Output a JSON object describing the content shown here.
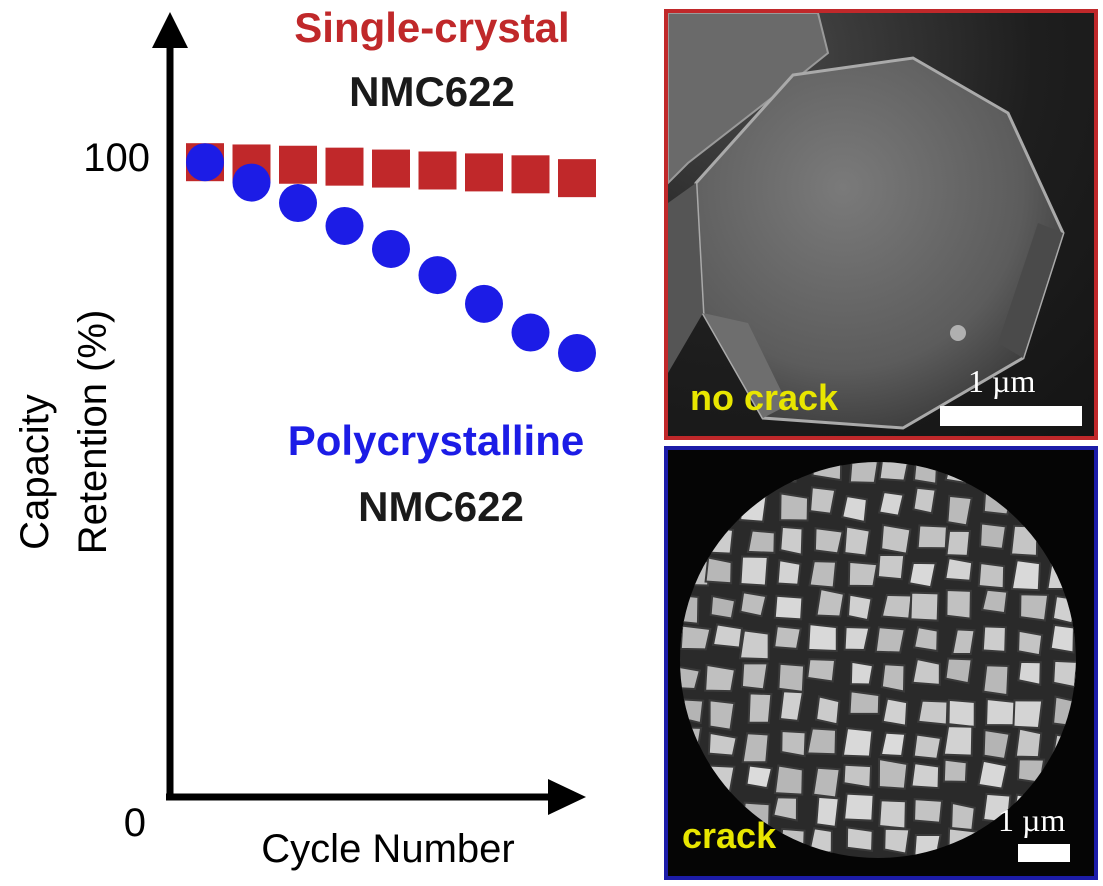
{
  "chart_data": {
    "type": "scatter",
    "title": "",
    "xlabel": "Cycle Number",
    "ylabel": [
      "Capacity",
      "Retention (%)"
    ],
    "y_ticks": [
      "0",
      "100"
    ],
    "ylim": [
      0,
      100
    ],
    "grid": false,
    "x": [
      1,
      2,
      3,
      4,
      5,
      6,
      7,
      8,
      9
    ],
    "series": [
      {
        "name": "Single-crystal NMC622",
        "label_line1": "Single-crystal",
        "label_line2": "NMC622",
        "color": "#c0282a",
        "marker": "square",
        "values": [
          99.5,
          99.3,
          99.1,
          98.8,
          98.5,
          98.2,
          97.9,
          97.6,
          97.0
        ]
      },
      {
        "name": "Polycrystalline NMC622",
        "label_line1": "Polycrystalline",
        "label_line2": "NMC622",
        "color": "#1c1ce6",
        "marker": "circle",
        "values": [
          99.5,
          96.3,
          93.1,
          89.5,
          85.9,
          81.8,
          77.3,
          72.8,
          69.6
        ]
      }
    ]
  },
  "colors": {
    "single_crystal": "#c0282a",
    "polycrystalline": "#1c1ce6",
    "annotation_black": "#1a1a1a",
    "sem_label": "#e8e600"
  },
  "sem_images": {
    "top": {
      "label": "no crack",
      "scale": "1 µm",
      "frame_color": "#c0282a"
    },
    "bottom": {
      "label": "crack",
      "scale": "1 µm",
      "frame_color": "#1c1ca8"
    }
  }
}
